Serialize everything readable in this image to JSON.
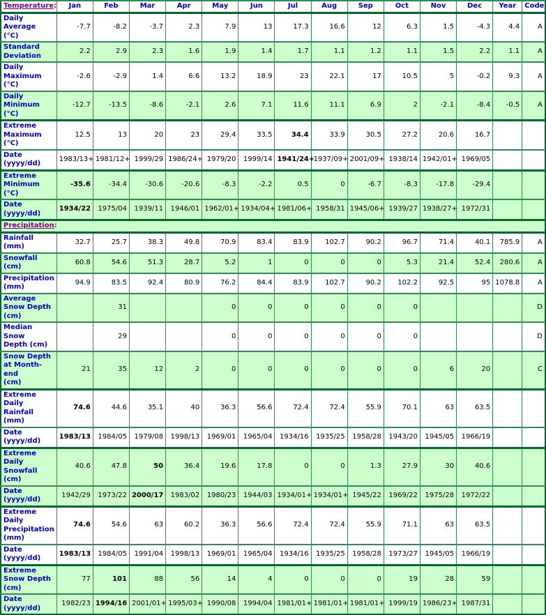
{
  "chart_data": {
    "type": "table",
    "header": {
      "label": "Temperature",
      "suffix": ":",
      "columns": [
        "Jan",
        "Feb",
        "Mar",
        "Apr",
        "May",
        "Jun",
        "Jul",
        "Aug",
        "Sep",
        "Oct",
        "Nov",
        "Dec",
        "Year",
        "Code"
      ]
    },
    "temperature_rows": [
      {
        "label": "Daily Average\n(°C)",
        "values": [
          "-7.7",
          "-8.2",
          "-3.7",
          "2.3",
          "7.9",
          "13",
          "17.3",
          "16.6",
          "12",
          "6.3",
          "1.5",
          "-4.3",
          "4.4",
          "A"
        ],
        "bold": [],
        "shaded": false,
        "group_start": true
      },
      {
        "label": "Standard\nDeviation",
        "values": [
          "2.2",
          "2.9",
          "2.3",
          "1.6",
          "1.9",
          "1.4",
          "1.7",
          "1.1",
          "1.2",
          "1.1",
          "1.5",
          "2.2",
          "1.1",
          "A"
        ],
        "bold": [],
        "shaded": true,
        "group_start": false
      },
      {
        "label": "Daily\nMaximum\n(°C)",
        "values": [
          "-2.6",
          "-2.9",
          "1.4",
          "6.6",
          "13.2",
          "18.9",
          "23",
          "22.1",
          "17",
          "10.5",
          "5",
          "-0.2",
          "9.3",
          "A"
        ],
        "bold": [],
        "shaded": false,
        "group_start": false
      },
      {
        "label": "Daily\nMinimum\n(°C)",
        "values": [
          "-12.7",
          "-13.5",
          "-8.6",
          "-2.1",
          "2.6",
          "7.1",
          "11.6",
          "11.1",
          "6.9",
          "2",
          "-2.1",
          "-8.4",
          "-0.5",
          "A"
        ],
        "bold": [],
        "shaded": true,
        "group_start": false
      },
      {
        "label": "Extreme\nMaximum\n(°C)",
        "values": [
          "12.5",
          "13",
          "20",
          "23",
          "29.4",
          "33.5",
          "34.4",
          "33.9",
          "30.5",
          "27.2",
          "20.6",
          "16.7",
          "",
          ""
        ],
        "bold": [
          6
        ],
        "shaded": false,
        "group_start": true
      },
      {
        "label": "Date\n(yyyy/dd)",
        "values": [
          "1983/13+",
          "1981/12+",
          "1999/29",
          "1986/24+",
          "1979/20",
          "1999/14",
          "1941/24+",
          "1937/09+",
          "2001/09+",
          "1938/14",
          "1942/01+",
          "1969/05",
          "",
          ""
        ],
        "bold": [
          6
        ],
        "shaded": false,
        "group_start": false
      },
      {
        "label": "Extreme\nMinimum\n(°C)",
        "values": [
          "-35.6",
          "-34.4",
          "-30.6",
          "-20.6",
          "-8.3",
          "-2.2",
          "0.5",
          "0",
          "-6.7",
          "-8.3",
          "-17.8",
          "-29.4",
          "",
          ""
        ],
        "bold": [
          0
        ],
        "shaded": true,
        "group_start": true
      },
      {
        "label": "Date\n(yyyy/dd)",
        "values": [
          "1934/22",
          "1975/04",
          "1939/11",
          "1946/01",
          "1962/01+",
          "1934/04+",
          "1981/06+",
          "1958/31",
          "1945/06+",
          "1939/27",
          "1938/27+",
          "1972/31",
          "",
          ""
        ],
        "bold": [
          0
        ],
        "shaded": true,
        "group_start": false
      }
    ],
    "precipitation_header": {
      "label": "Precipitation",
      "suffix": ":"
    },
    "precipitation_rows": [
      {
        "label": "Rainfall (mm)",
        "values": [
          "32.7",
          "25.7",
          "38.3",
          "49.8",
          "70.9",
          "83.4",
          "83.9",
          "102.7",
          "90.2",
          "96.7",
          "71.4",
          "40.1",
          "785.9",
          "A"
        ],
        "bold": [],
        "shaded": false,
        "group_start": true
      },
      {
        "label": "Snowfall\n(cm)",
        "values": [
          "60.8",
          "54.6",
          "51.3",
          "28.7",
          "5.2",
          "1",
          "0",
          "0",
          "0",
          "5.3",
          "21.4",
          "52.4",
          "280.6",
          "A"
        ],
        "bold": [],
        "shaded": true,
        "group_start": false
      },
      {
        "label": "Precipitation\n(mm)",
        "values": [
          "94.9",
          "83.5",
          "92.4",
          "80.9",
          "76.2",
          "84.4",
          "83.9",
          "102.7",
          "90.2",
          "102.2",
          "92.5",
          "95",
          "1078.8",
          "A"
        ],
        "bold": [],
        "shaded": false,
        "group_start": false
      },
      {
        "label": "Average\nSnow Depth\n(cm)",
        "values": [
          "",
          "31",
          "",
          "",
          "0",
          "0",
          "0",
          "0",
          "0",
          "0",
          "",
          "",
          "",
          "D"
        ],
        "bold": [],
        "shaded": true,
        "group_start": false
      },
      {
        "label": "Median Snow\nDepth (cm)",
        "values": [
          "",
          "29",
          "",
          "",
          "0",
          "0",
          "0",
          "0",
          "0",
          "0",
          "",
          "",
          "",
          "D"
        ],
        "bold": [],
        "shaded": false,
        "group_start": false
      },
      {
        "label": "Snow Depth\nat Month-end\n(cm)",
        "values": [
          "21",
          "35",
          "12",
          "2",
          "0",
          "0",
          "0",
          "0",
          "0",
          "0",
          "6",
          "20",
          "",
          "C"
        ],
        "bold": [],
        "shaded": true,
        "group_start": false
      },
      {
        "label": "Extreme Daily\nRainfall (mm)",
        "values": [
          "74.6",
          "44.6",
          "35.1",
          "40",
          "36.3",
          "56.6",
          "72.4",
          "72.4",
          "55.9",
          "70.1",
          "63",
          "63.5",
          "",
          ""
        ],
        "bold": [
          0
        ],
        "shaded": false,
        "group_start": true
      },
      {
        "label": "Date\n(yyyy/dd)",
        "values": [
          "1983/13",
          "1984/05",
          "1979/08",
          "1998/13",
          "1969/01",
          "1965/04",
          "1934/16",
          "1935/25",
          "1958/28",
          "1943/20",
          "1945/05",
          "1966/19",
          "",
          ""
        ],
        "bold": [
          0
        ],
        "shaded": false,
        "group_start": false
      },
      {
        "label": "Extreme Daily\nSnowfall\n(cm)",
        "values": [
          "40.6",
          "47.8",
          "50",
          "36.4",
          "19.6",
          "17.8",
          "0",
          "0",
          "1.3",
          "27.9",
          "30",
          "40.6",
          "",
          ""
        ],
        "bold": [
          2
        ],
        "shaded": true,
        "group_start": true
      },
      {
        "label": "Date\n(yyyy/dd)",
        "values": [
          "1942/29",
          "1973/22",
          "2000/17",
          "1983/02",
          "1980/23",
          "1944/03",
          "1934/01+",
          "1934/01+",
          "1945/22",
          "1969/22",
          "1975/28",
          "1972/22",
          "",
          ""
        ],
        "bold": [
          2
        ],
        "shaded": true,
        "group_start": false
      },
      {
        "label": "Extreme Daily\nPrecipitation\n(mm)",
        "values": [
          "74.6",
          "54.6",
          "63",
          "60.2",
          "36.3",
          "56.6",
          "72.4",
          "72.4",
          "55.9",
          "71.1",
          "63",
          "63.5",
          "",
          ""
        ],
        "bold": [
          0
        ],
        "shaded": false,
        "group_start": true
      },
      {
        "label": "Date\n(yyyy/dd)",
        "values": [
          "1983/13",
          "1984/05",
          "1991/04",
          "1998/13",
          "1969/01",
          "1965/04",
          "1934/16",
          "1935/25",
          "1958/28",
          "1973/27",
          "1945/05",
          "1966/19",
          "",
          ""
        ],
        "bold": [
          0
        ],
        "shaded": false,
        "group_start": false
      },
      {
        "label": "Extreme\nSnow Depth\n(cm)",
        "values": [
          "77",
          "101",
          "88",
          "56",
          "14",
          "4",
          "0",
          "0",
          "0",
          "19",
          "28",
          "59",
          "",
          ""
        ],
        "bold": [
          1
        ],
        "shaded": true,
        "group_start": true
      },
      {
        "label": "Date\n(yyyy/dd)",
        "values": [
          "1982/23",
          "1994/16",
          "2001/01+",
          "1995/03+",
          "1990/08",
          "1994/04",
          "1981/01+",
          "1981/01+",
          "1981/01+",
          "1999/19",
          "1986/23+",
          "1987/31",
          "",
          ""
        ],
        "bold": [
          1
        ],
        "shaded": true,
        "group_start": false
      }
    ],
    "layout": {
      "row_shade_color": "#ccffcc",
      "row_plain_color": "#ffffff",
      "grid_color": "#2e8b57",
      "frame_color": "#006633",
      "label_color": "#0000cc",
      "section_label_color": "#800080",
      "value_color": "#000000"
    }
  }
}
